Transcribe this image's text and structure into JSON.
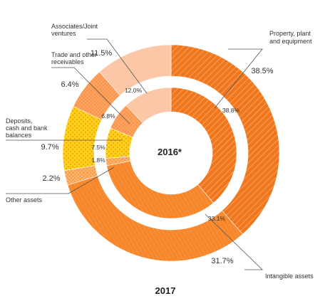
{
  "chart_data": {
    "type": "pie",
    "subtype": "double-donut",
    "title": "2017",
    "center_label": "2016*",
    "categories": [
      "Property, plant and equipment",
      "Intangible assets",
      "Other assets",
      "Deposits, cash and bank balances",
      "Trade and other receivables",
      "Associates/Joint ventures"
    ],
    "category_lines": [
      [
        "Property, plant",
        "and equipment"
      ],
      [
        "Intangible assets"
      ],
      [
        "Other assets"
      ],
      [
        "Deposits,",
        "cash and bank",
        "balances"
      ],
      [
        "Trade and other",
        "receivables"
      ],
      [
        "Associates/Joint",
        "ventures"
      ]
    ],
    "outer_ring": {
      "name": "2017",
      "values": [
        38.5,
        31.7,
        2.2,
        9.7,
        6.4,
        11.5
      ],
      "labels": [
        "38.5%",
        "31.7%",
        "2.2%",
        "9.7%",
        "6.4%",
        "11.5%"
      ]
    },
    "inner_ring": {
      "name": "2016*",
      "values": [
        38.8,
        33.1,
        1.8,
        7.5,
        6.8,
        12.0
      ],
      "labels": [
        "38.8%",
        "33.1%",
        "1.8%",
        "7.5%",
        "6.8%",
        "12.0%"
      ]
    },
    "colors": [
      "#F0771E",
      "#F7872A",
      "#F79A4A",
      "#FFD21F",
      "#FDA86A",
      "#FCC7A6"
    ]
  }
}
